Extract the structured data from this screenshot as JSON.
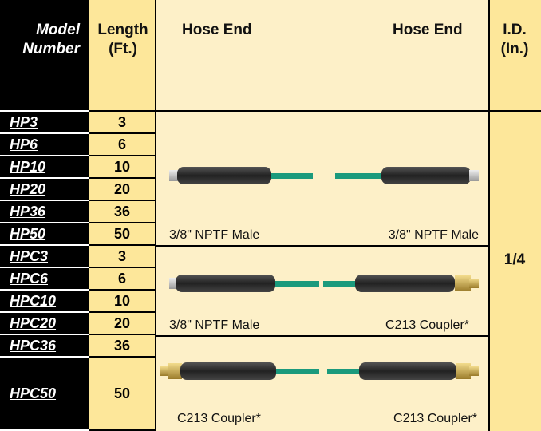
{
  "header": {
    "model": [
      "Model",
      "Number"
    ],
    "length": [
      "Length",
      "(Ft.)"
    ],
    "hose_end_left": "Hose End",
    "hose_end_right": "Hose End",
    "id": [
      "I.D.",
      "(In.)"
    ]
  },
  "rows": [
    {
      "model": "HP3",
      "length": 3
    },
    {
      "model": "HP6",
      "length": 6
    },
    {
      "model": "HP10",
      "length": 10
    },
    {
      "model": "HP20",
      "length": 20
    },
    {
      "model": "HP36",
      "length": 36
    },
    {
      "model": "HP50",
      "length": 50
    },
    {
      "model": "HPC3",
      "length": 3
    },
    {
      "model": "HPC6",
      "length": 6
    },
    {
      "model": "HPC10",
      "length": 10
    },
    {
      "model": "HPC20",
      "length": 20
    },
    {
      "model": "HPC36",
      "length": 36
    },
    {
      "model": "HPC50",
      "length": 50
    }
  ],
  "groups": [
    {
      "left": "3/8\" NPTF Male",
      "right": "3/8\" NPTF Male"
    },
    {
      "left": "3/8\" NPTF Male",
      "right": "C213 Coupler*"
    },
    {
      "left": "C213 Coupler*",
      "right": "C213 Coupler*"
    }
  ],
  "id_value": "1/4"
}
